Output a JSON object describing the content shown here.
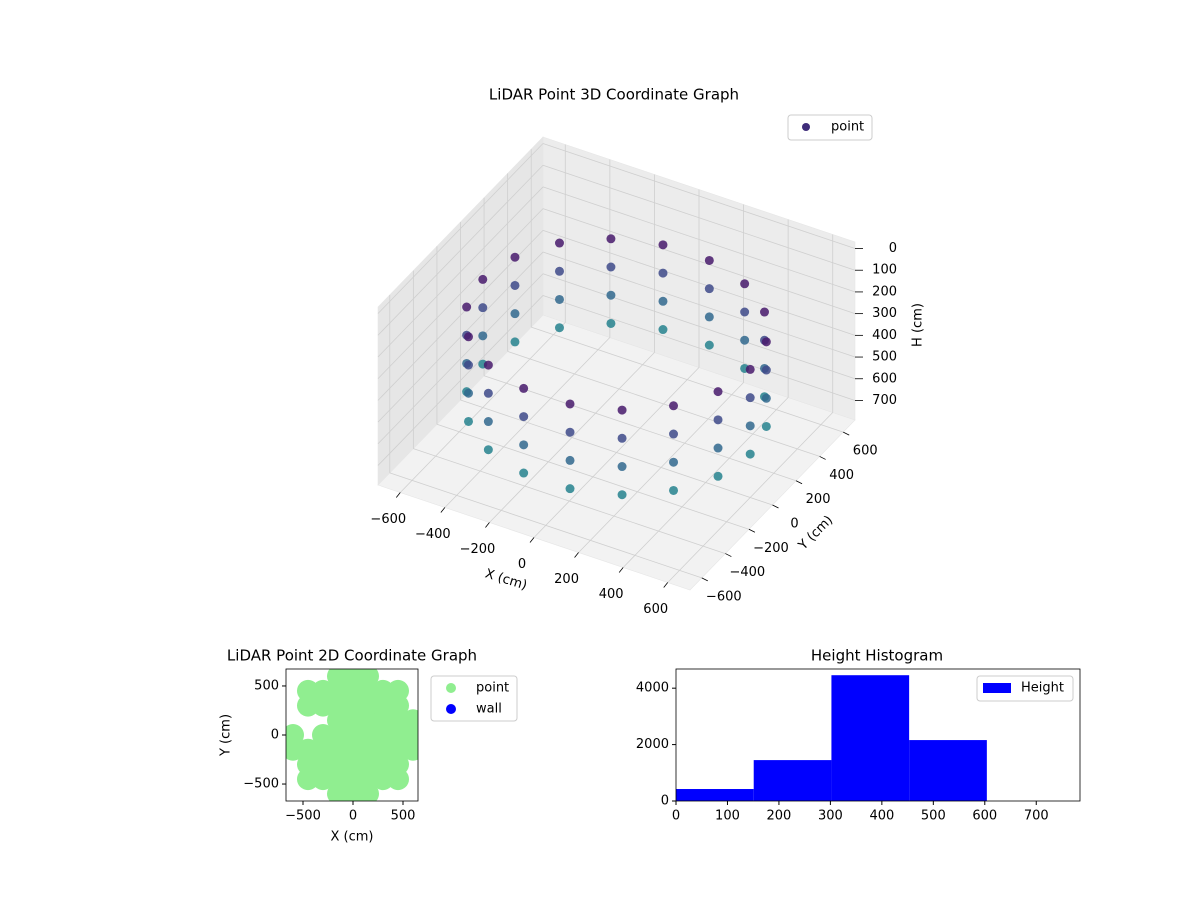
{
  "chart_data": [
    {
      "type": "scatter3d",
      "title": "LiDAR Point 3D Coordinate Graph",
      "xlabel": "X (cm)",
      "ylabel": "Y (cm)",
      "zlabel": "H (cm)",
      "xlim": [
        -700,
        700
      ],
      "ylim": [
        -700,
        700
      ],
      "zlim": [
        -30,
        790
      ],
      "z_inverted": true,
      "xticks": [
        {
          "value": -600,
          "label": "−600"
        },
        {
          "value": -400,
          "label": "−400"
        },
        {
          "value": -200,
          "label": "−200"
        },
        0,
        200,
        400,
        600
      ],
      "yticks": [
        {
          "value": -600,
          "label": "−600"
        },
        {
          "value": -400,
          "label": "−400"
        },
        {
          "value": -200,
          "label": "−200"
        },
        0,
        200,
        400,
        600
      ],
      "zticks": [
        0,
        100,
        200,
        300,
        400,
        500,
        600,
        700
      ],
      "legend": "upper right",
      "colormap": [
        "#481a6c",
        "#3e4a89",
        "#31688e",
        "#26828e"
      ],
      "series": [
        {
          "name": "point",
          "color": "#3f2d7a",
          "x": [
            600,
            564,
            460,
            300,
            104,
            -104,
            -300,
            -460,
            -564,
            -600,
            -564,
            -460,
            -300,
            -104,
            104,
            300,
            460,
            564,
            600,
            564,
            460,
            300,
            104,
            -104,
            -300,
            -460,
            -564,
            -600,
            -564,
            -460,
            -300,
            -104,
            104,
            300,
            460,
            564,
            600,
            564,
            460,
            300,
            104,
            -104,
            -300,
            -460,
            -564,
            -600,
            -564,
            -460,
            -300,
            -104,
            104,
            300,
            460,
            564,
            600,
            564,
            460,
            300,
            104,
            -104,
            -300,
            -460,
            -564,
            -600,
            -564,
            -460,
            -300,
            -104,
            104,
            300,
            460,
            564
          ],
          "y": [
            0,
            205,
            386,
            520,
            591,
            591,
            520,
            386,
            205,
            0,
            -205,
            -386,
            -520,
            -591,
            -591,
            -520,
            -386,
            -205,
            0,
            205,
            386,
            520,
            591,
            591,
            520,
            386,
            205,
            0,
            -205,
            -386,
            -520,
            -591,
            -591,
            -520,
            -386,
            -205,
            0,
            205,
            386,
            520,
            591,
            591,
            520,
            386,
            205,
            0,
            -205,
            -386,
            -520,
            -591,
            -591,
            -520,
            -386,
            -205,
            0,
            205,
            386,
            520,
            591,
            591,
            520,
            386,
            205,
            0,
            -205,
            -386,
            -520,
            -591,
            -591,
            -520,
            -386,
            -205
          ],
          "h": [
            200,
            200,
            200,
            200,
            200,
            200,
            200,
            200,
            200,
            200,
            200,
            200,
            200,
            200,
            200,
            200,
            200,
            200,
            330,
            330,
            330,
            330,
            330,
            330,
            330,
            330,
            330,
            330,
            330,
            330,
            330,
            330,
            330,
            330,
            330,
            330,
            460,
            460,
            460,
            460,
            460,
            460,
            460,
            460,
            460,
            460,
            460,
            460,
            460,
            460,
            460,
            460,
            460,
            460,
            590,
            590,
            590,
            590,
            590,
            590,
            590,
            590,
            590,
            590,
            590,
            590,
            590,
            590,
            590,
            590,
            590,
            590
          ]
        }
      ]
    },
    {
      "type": "scatter",
      "title": "LiDAR Point 2D Coordinate Graph",
      "xlabel": "X (cm)",
      "ylabel": "Y (cm)",
      "xlim": [
        -670,
        650
      ],
      "ylim": [
        -673,
        673
      ],
      "xticks": [
        {
          "value": -500,
          "label": "−500"
        },
        0,
        500
      ],
      "yticks": [
        {
          "value": -500,
          "label": "−500"
        },
        0,
        500
      ],
      "legend": "outside upper right",
      "series": [
        {
          "name": "point",
          "color": "#90ee90",
          "x": [
            -600,
            -600,
            -450,
            -450,
            -450,
            -450,
            -450,
            -300,
            -300,
            -300,
            -300,
            -300,
            -300,
            -150,
            -150,
            -150,
            -150,
            -150,
            -150,
            -150,
            -150,
            -150,
            0,
            0,
            0,
            0,
            0,
            0,
            0,
            0,
            0,
            150,
            150,
            150,
            150,
            150,
            150,
            150,
            150,
            150,
            300,
            300,
            300,
            300,
            300,
            300,
            300,
            450,
            450,
            450,
            450,
            450,
            450,
            450,
            600,
            600,
            600
          ],
          "y": [
            -150,
            0,
            -450,
            -300,
            -150,
            300,
            450,
            -450,
            -300,
            -150,
            0,
            300,
            450,
            -600,
            -450,
            -300,
            -150,
            0,
            150,
            300,
            450,
            600,
            -600,
            -450,
            -300,
            -150,
            0,
            150,
            300,
            450,
            600,
            -600,
            -450,
            -300,
            -150,
            0,
            150,
            300,
            450,
            600,
            -450,
            -300,
            -150,
            0,
            150,
            300,
            450,
            -450,
            -300,
            -150,
            0,
            150,
            300,
            450,
            -150,
            0,
            150
          ]
        },
        {
          "name": "wall",
          "color": "#0000ff",
          "x": [],
          "y": []
        }
      ]
    },
    {
      "type": "histogram",
      "title": "Height Histogram",
      "xlim": [
        0,
        785
      ],
      "ylim": [
        0,
        4680
      ],
      "xticks": [
        0,
        100,
        200,
        300,
        400,
        500,
        600,
        700
      ],
      "yticks": [
        0,
        2000,
        4000
      ],
      "legend": "upper right",
      "bins": [
        0,
        151,
        302,
        453,
        604
      ],
      "series": [
        {
          "name": "Height",
          "color": "#0000ff",
          "values": [
            425,
            1450,
            4460,
            2160
          ]
        }
      ]
    }
  ]
}
